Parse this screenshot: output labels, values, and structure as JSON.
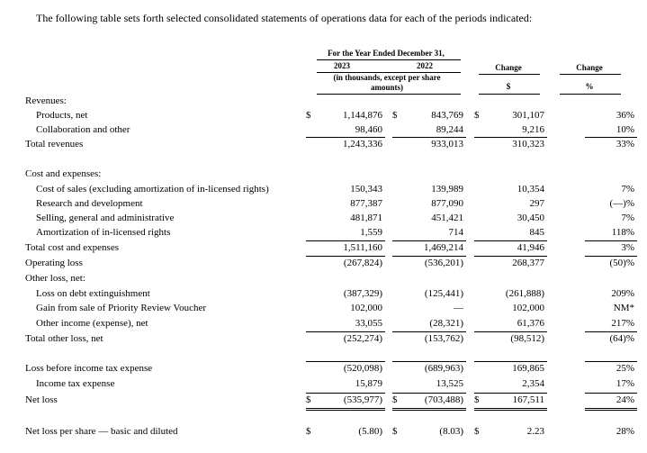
{
  "intro": "The following table sets forth selected consolidated statements of operations data for each of the periods indicated:",
  "header": {
    "period": "For the Year Ended December 31,",
    "year_2023": "2023",
    "year_2022": "2022",
    "units": "(in thousands, except per share amounts)",
    "change_abs": "Change",
    "change_abs_unit": "$",
    "change_pct": "Change",
    "change_pct_unit": "%"
  },
  "table": {
    "rows": [
      {
        "label": "Revenues:"
      },
      {
        "label": "Products, net",
        "cells": [
          "$",
          "1,144,876",
          "$",
          "843,769",
          "$",
          "301,107",
          "36%"
        ]
      },
      {
        "label": "Collaboration and other",
        "cells": [
          null,
          "98,460",
          null,
          "89,244",
          null,
          "9,216",
          "10%"
        ]
      },
      {
        "label": "Total revenues",
        "cells": [
          null,
          "1,243,336",
          null,
          "933,013",
          null,
          "310,323",
          "33%"
        ]
      },
      {
        "label": "Cost and expenses:"
      },
      {
        "label": "Cost of sales (excluding amortization of in-licensed rights)",
        "cells": [
          null,
          "150,343",
          null,
          "139,989",
          null,
          "10,354",
          "7%"
        ]
      },
      {
        "label": "Research and development",
        "cells": [
          null,
          "877,387",
          null,
          "877,090",
          null,
          "297",
          "(—)%"
        ]
      },
      {
        "label": "Selling, general and administrative",
        "cells": [
          null,
          "481,871",
          null,
          "451,421",
          null,
          "30,450",
          "7%"
        ]
      },
      {
        "label": "Amortization of in-licensed rights",
        "cells": [
          null,
          "1,559",
          null,
          "714",
          null,
          "845",
          "118%"
        ]
      },
      {
        "label": "Total cost and expenses",
        "cells": [
          null,
          "1,511,160",
          null,
          "1,469,214",
          null,
          "41,946",
          "3%"
        ]
      },
      {
        "label": "Operating loss",
        "cells": [
          null,
          "(267,824)",
          null,
          "(536,201)",
          null,
          "268,377",
          "(50)%"
        ]
      },
      {
        "label": "Other loss, net:"
      },
      {
        "label": "Loss on debt extinguishment",
        "cells": [
          null,
          "(387,329)",
          null,
          "(125,441)",
          null,
          "(261,888)",
          "209%"
        ]
      },
      {
        "label": "Gain from sale of Priority Review Voucher",
        "cells": [
          null,
          "102,000",
          null,
          "—",
          null,
          "102,000",
          "NM*"
        ]
      },
      {
        "label": "Other income (expense), net",
        "cells": [
          null,
          "33,055",
          null,
          "(28,321)",
          null,
          "61,376",
          "217%"
        ]
      },
      {
        "label": "Total other loss, net",
        "cells": [
          null,
          "(252,274)",
          null,
          "(153,762)",
          null,
          "(98,512)",
          "(64)%"
        ]
      },
      {
        "label": "Loss before income tax expense",
        "cells": [
          null,
          "(520,098)",
          null,
          "(689,963)",
          null,
          "169,865",
          "25%"
        ]
      },
      {
        "label": "Income tax expense",
        "cells": [
          null,
          "15,879",
          null,
          "13,525",
          null,
          "2,354",
          "17%"
        ]
      },
      {
        "label": "Net loss",
        "cells": [
          "$",
          "(535,977)",
          "$",
          "(703,488)",
          "$",
          "167,511",
          "24%"
        ]
      },
      {
        "label": "Net loss per share — basic and diluted",
        "cells": [
          "$",
          "(5.80)",
          "$",
          "(8.03)",
          "$",
          "2.23",
          "28%"
        ]
      }
    ]
  }
}
